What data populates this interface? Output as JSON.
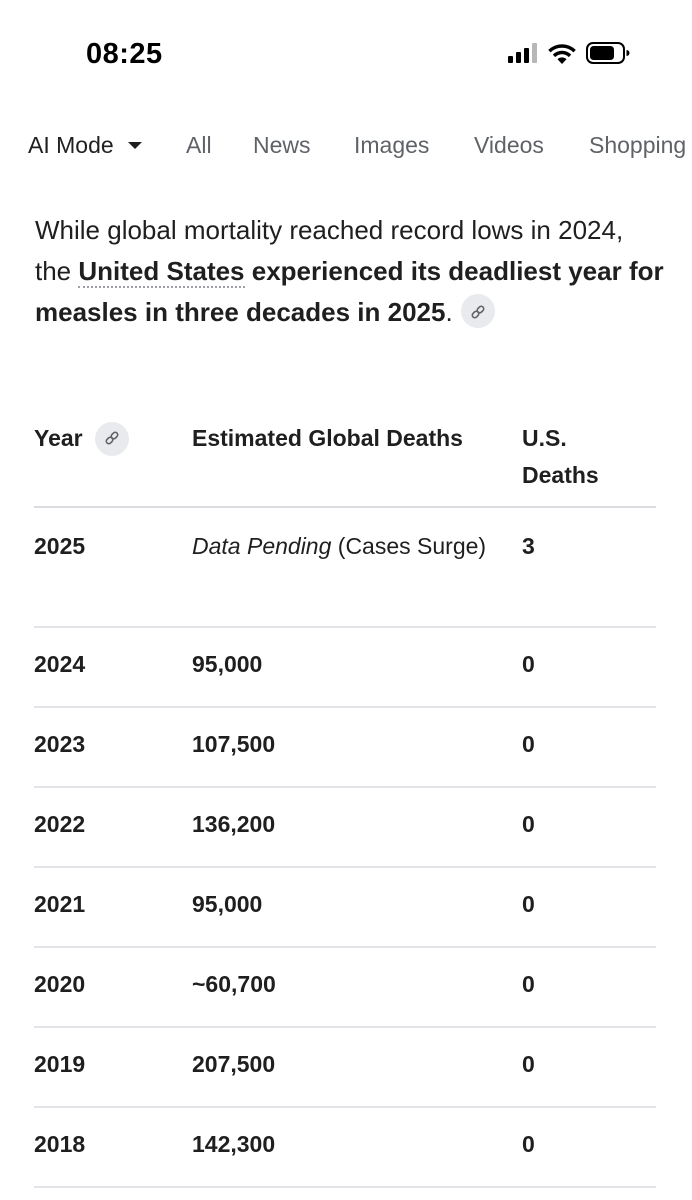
{
  "status_bar": {
    "time": "08:25"
  },
  "tabs": [
    {
      "label": "AI Mode",
      "active": true
    },
    {
      "label": "All"
    },
    {
      "label": "News"
    },
    {
      "label": "Images"
    },
    {
      "label": "Videos"
    },
    {
      "label": "Shopping"
    }
  ],
  "intro": {
    "part1": "While global mortality reached record lows in 2024, the ",
    "link": "United States",
    "part2_bold": " experienced its deadliest year for measles in three decades in 2025",
    "part3": "."
  },
  "table": {
    "headers": {
      "year": "Year",
      "global": "Estimated Global Deaths",
      "us": "U.S. Deaths"
    },
    "first_row": {
      "year": "2025",
      "global_italic": "Data Pending",
      "global_rest": " (Cases Surge)",
      "us": "3"
    },
    "rows": [
      {
        "year": "2024",
        "global": "95,000",
        "us": "0"
      },
      {
        "year": "2023",
        "global": "107,500",
        "us": "0"
      },
      {
        "year": "2022",
        "global": "136,200",
        "us": "0"
      },
      {
        "year": "2021",
        "global": "95,000",
        "us": "0"
      },
      {
        "year": "2020",
        "global": "~60,700",
        "us": "0"
      },
      {
        "year": "2019",
        "global": "207,500",
        "us": "0"
      },
      {
        "year": "2018",
        "global": "142,300",
        "us": "0"
      }
    ]
  },
  "icons": {
    "signal": "cellular-signal-icon",
    "wifi": "wifi-icon",
    "battery": "battery-icon",
    "cite": "link-icon"
  }
}
